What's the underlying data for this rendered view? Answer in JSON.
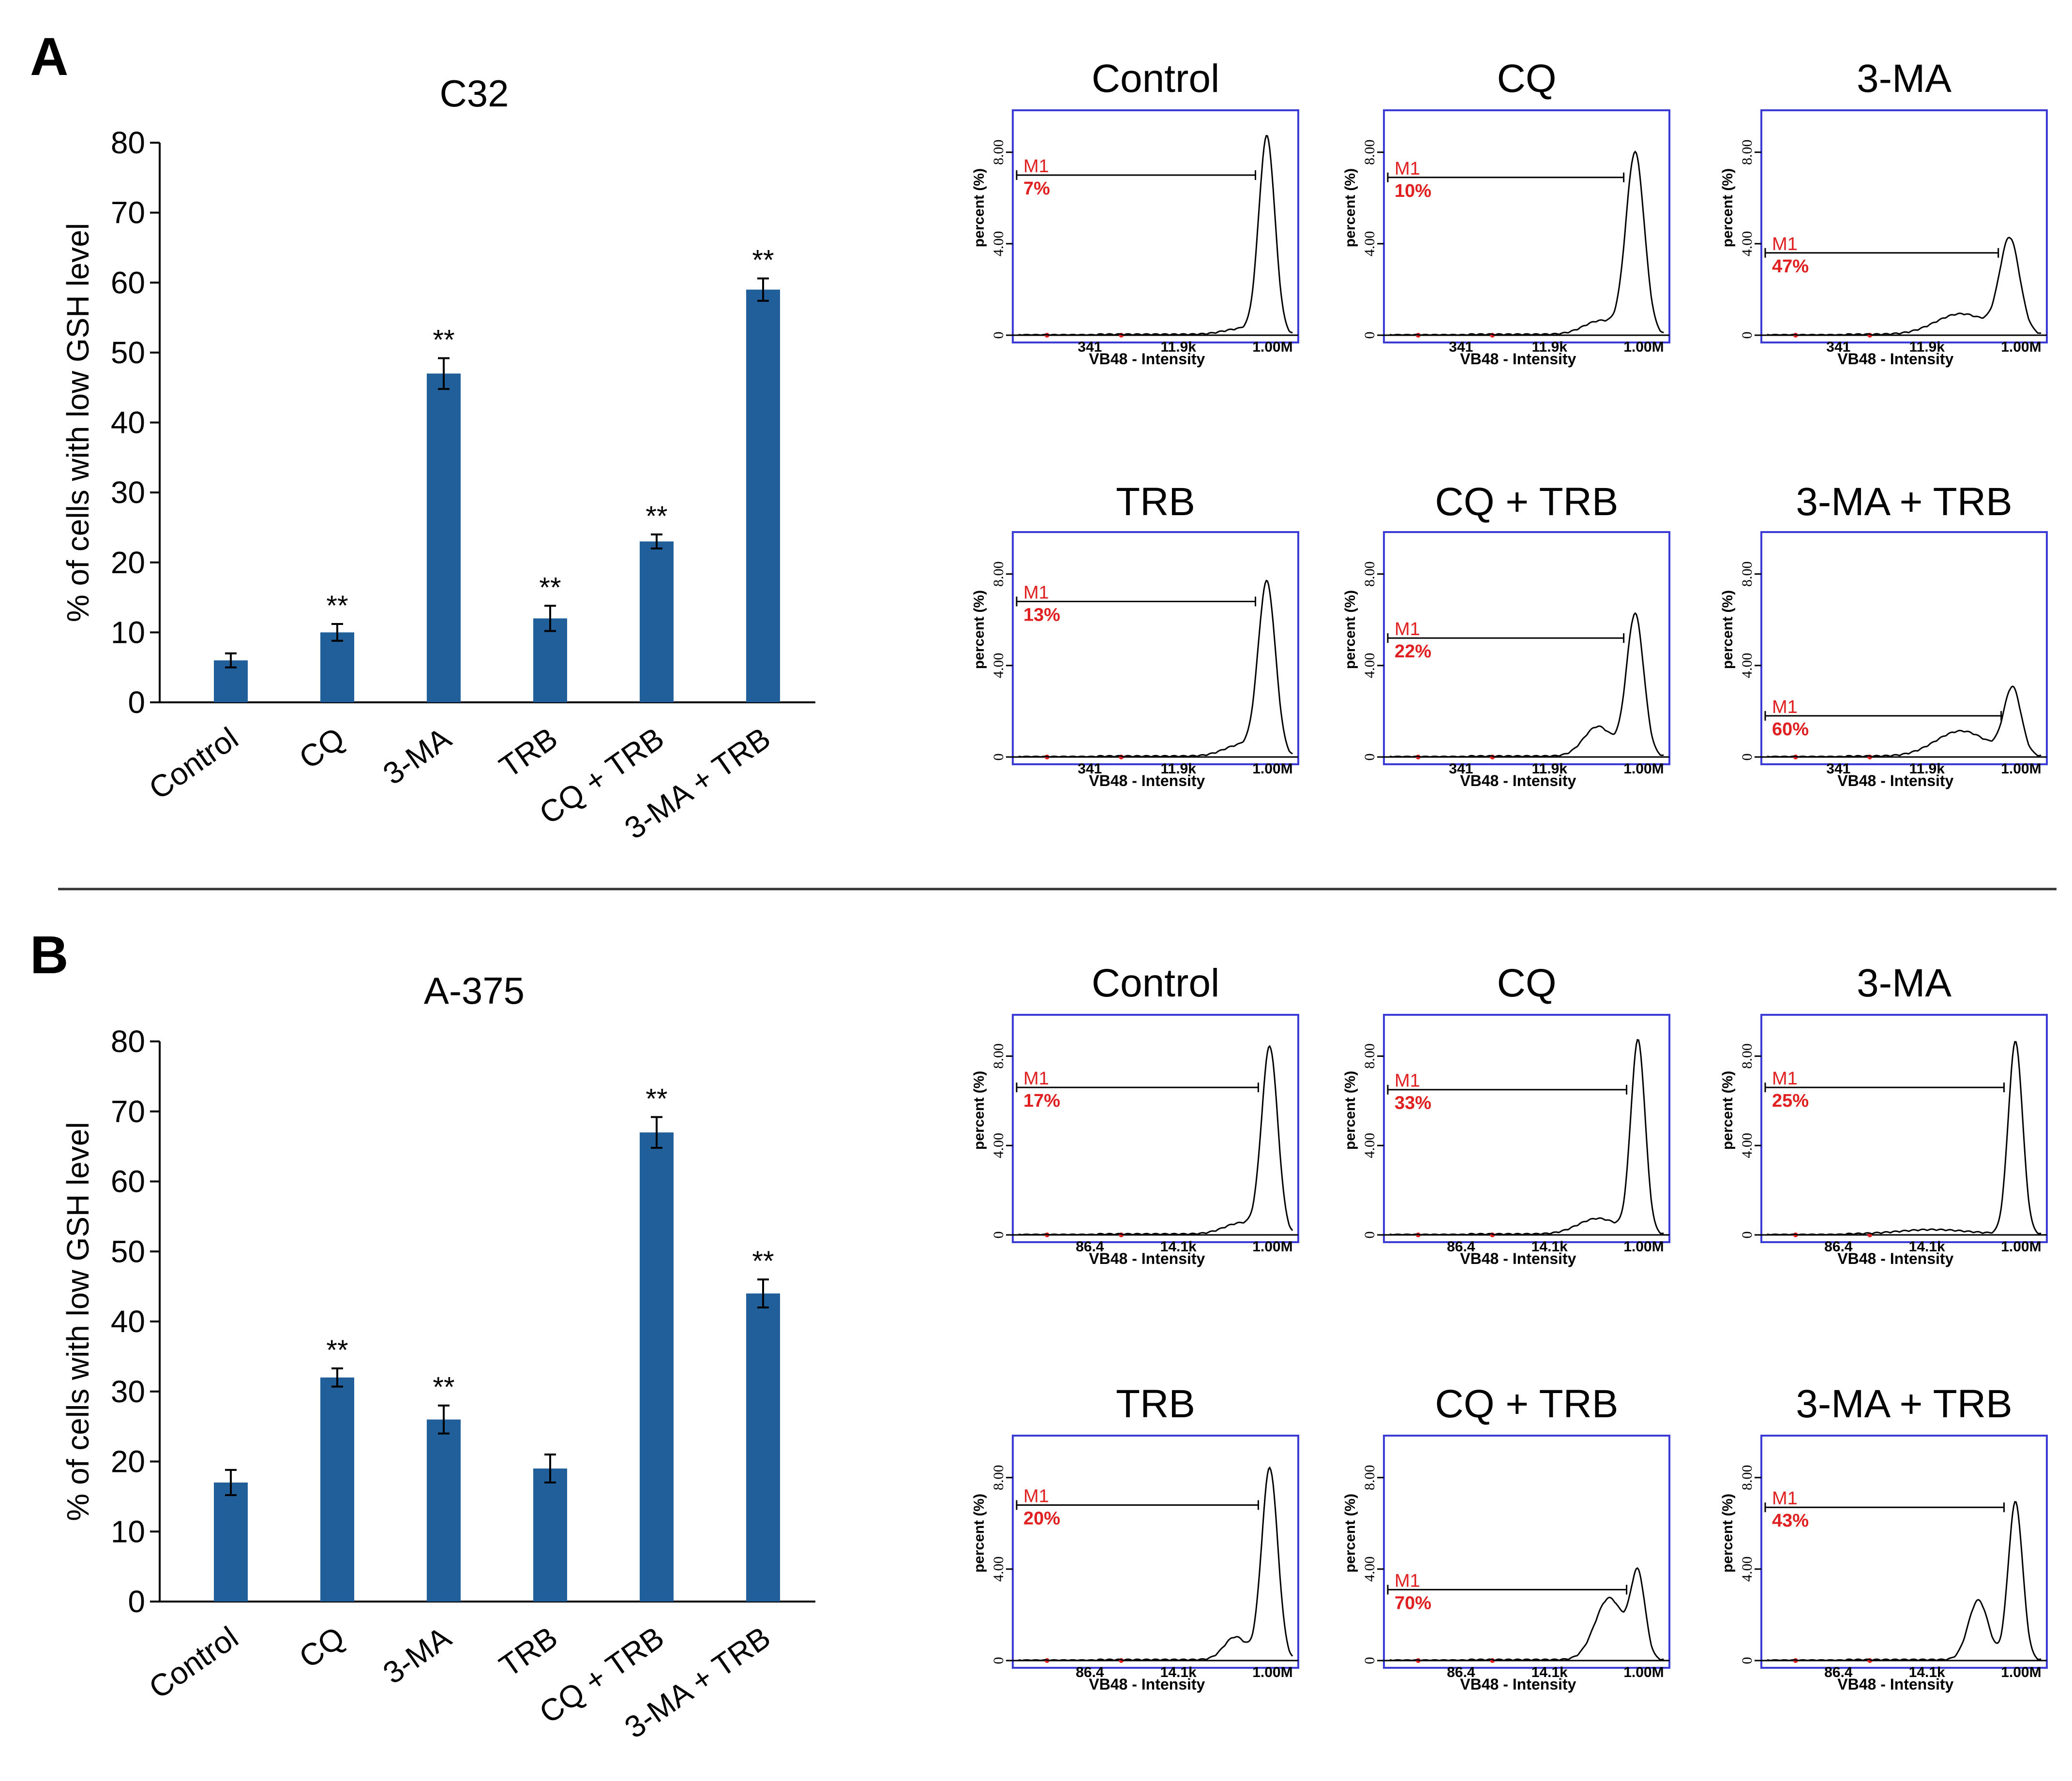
{
  "panels": [
    {
      "id": "A",
      "label": "A",
      "bar_chart": {
        "type": "bar",
        "title": "C32",
        "ylabel": "% of cells with low GSH level",
        "xlabel": "",
        "ylim": [
          0,
          80
        ],
        "yticks": [
          0,
          10,
          20,
          30,
          40,
          50,
          60,
          70,
          80
        ],
        "categories": [
          "Control",
          "CQ",
          "3-MA",
          "TRB",
          "CQ + TRB",
          "3-MA + TRB"
        ],
        "values": [
          6,
          10,
          47,
          12,
          23,
          59
        ],
        "errors": [
          1,
          1.2,
          2.2,
          1.8,
          1,
          1.6
        ],
        "significance": [
          "",
          "**",
          "**",
          "**",
          "**",
          "**"
        ],
        "bar_color": "#215f9a"
      },
      "histograms": {
        "xlabel": "VB48 - Intensity",
        "ylabel": "percent (%)",
        "yticks": [
          "0",
          "4.00",
          "8.00"
        ],
        "xticks": [
          "341",
          "11.9k",
          "1.00M"
        ],
        "items": [
          {
            "title": "Control",
            "gate": "M1",
            "percent": "7%",
            "gate_level": 7.0,
            "peak": [
              0.89,
              8.6,
              0.028
            ],
            "shoulder": [
              0.8,
              0.25,
              0.06
            ]
          },
          {
            "title": "CQ",
            "gate": "M1",
            "percent": "10%",
            "gate_level": 6.9,
            "peak": [
              0.88,
              7.9,
              0.032
            ],
            "shoulder": [
              0.76,
              0.6,
              0.06
            ]
          },
          {
            "title": "3-MA",
            "gate": "M1",
            "percent": "47%",
            "gate_level": 3.6,
            "peak": [
              0.87,
              4.1,
              0.035
            ],
            "shoulder": [
              0.7,
              0.9,
              0.09
            ]
          },
          {
            "title": "TRB",
            "gate": "M1",
            "percent": "13%",
            "gate_level": 6.8,
            "peak": [
              0.89,
              7.5,
              0.03
            ],
            "shoulder": [
              0.8,
              0.5,
              0.06
            ]
          },
          {
            "title": "CQ + TRB",
            "gate": "M1",
            "percent": "22%",
            "gate_level": 5.2,
            "peak": [
              0.88,
              6.2,
              0.03
            ],
            "shoulder": [
              0.75,
              1.3,
              0.05
            ]
          },
          {
            "title": "3-MA + TRB",
            "gate": "M1",
            "percent": "60%",
            "gate_level": 1.8,
            "peak": [
              0.88,
              2.9,
              0.03
            ],
            "shoulder": [
              0.7,
              1.1,
              0.09
            ]
          }
        ]
      }
    },
    {
      "id": "B",
      "label": "B",
      "bar_chart": {
        "type": "bar",
        "title": "A-375",
        "ylabel": "% of cells with low GSH level",
        "xlabel": "",
        "ylim": [
          0,
          80
        ],
        "yticks": [
          0,
          10,
          20,
          30,
          40,
          50,
          60,
          70,
          80
        ],
        "categories": [
          "Control",
          "CQ",
          "3-MA",
          "TRB",
          "CQ + TRB",
          "3-MA + TRB"
        ],
        "values": [
          17,
          32,
          26,
          19,
          67,
          44
        ],
        "errors": [
          1.8,
          1.3,
          2,
          2,
          2.2,
          2
        ],
        "significance": [
          "",
          "**",
          "**",
          "",
          "**",
          "**"
        ],
        "bar_color": "#215f9a"
      },
      "histograms": {
        "xlabel": "VB48 - Intensity",
        "ylabel": "percent (%)",
        "yticks": [
          "0",
          "4.00",
          "8.00"
        ],
        "xticks": [
          "86.4",
          "14.1k",
          "1.00M"
        ],
        "items": [
          {
            "title": "Control",
            "gate": "M1",
            "percent": "17%",
            "gate_level": 6.6,
            "peak": [
              0.9,
              8.3,
              0.028
            ],
            "shoulder": [
              0.8,
              0.5,
              0.06
            ]
          },
          {
            "title": "CQ",
            "gate": "M1",
            "percent": "33%",
            "gate_level": 6.5,
            "peak": [
              0.89,
              8.6,
              0.025
            ],
            "shoulder": [
              0.75,
              0.7,
              0.07
            ]
          },
          {
            "title": "3-MA",
            "gate": "M1",
            "percent": "25%",
            "gate_level": 6.6,
            "peak": [
              0.89,
              8.6,
              0.025
            ],
            "shoulder": [
              0.6,
              0.2,
              0.12
            ]
          },
          {
            "title": "TRB",
            "gate": "M1",
            "percent": "20%",
            "gate_level": 6.8,
            "peak": [
              0.9,
              8.4,
              0.028
            ],
            "shoulder": [
              0.78,
              1.0,
              0.04
            ]
          },
          {
            "title": "CQ + TRB",
            "gate": "M1",
            "percent": "70%",
            "gate_level": 3.1,
            "peak": [
              0.89,
              3.6,
              0.025
            ],
            "shoulder": [
              0.79,
              2.7,
              0.05
            ]
          },
          {
            "title": "3-MA + TRB",
            "gate": "M1",
            "percent": "43%",
            "gate_level": 6.7,
            "peak": [
              0.89,
              6.9,
              0.025
            ],
            "shoulder": [
              0.76,
              2.6,
              0.035
            ]
          }
        ]
      }
    }
  ],
  "chart_data": [
    {
      "type": "bar",
      "title": "C32",
      "ylabel": "% of cells with low GSH level",
      "xlabel": "",
      "ylim": [
        0,
        80
      ],
      "categories": [
        "Control",
        "CQ",
        "3-MA",
        "TRB",
        "CQ + TRB",
        "3-MA + TRB"
      ],
      "values": [
        6,
        10,
        47,
        12,
        23,
        59
      ],
      "errors": [
        1,
        1.2,
        2.2,
        1.8,
        1,
        1.6
      ],
      "annotations": [
        "",
        "**",
        "**",
        "**",
        "**",
        "**"
      ]
    },
    {
      "type": "bar",
      "title": "A-375",
      "ylabel": "% of cells with low GSH level",
      "xlabel": "",
      "ylim": [
        0,
        80
      ],
      "categories": [
        "Control",
        "CQ",
        "3-MA",
        "TRB",
        "CQ + TRB",
        "3-MA + TRB"
      ],
      "values": [
        17,
        32,
        26,
        19,
        67,
        44
      ],
      "errors": [
        1.8,
        1.3,
        2,
        2,
        2.2,
        2
      ],
      "annotations": [
        "",
        "**",
        "**",
        "",
        "**",
        "**"
      ]
    }
  ]
}
